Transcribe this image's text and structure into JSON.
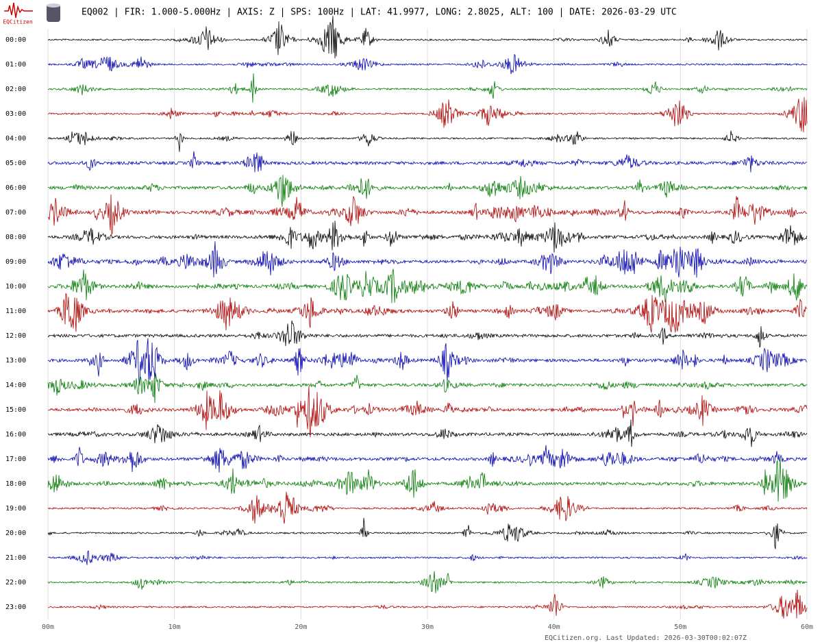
{
  "header": {
    "logo_text": "EQCitizen",
    "title": "EQ002 | FIR: 1.000-5.000Hz | AXIS: Z | SPS: 100Hz | LAT: 41.9977, LONG: 2.8025, ALT: 100 | DATE: 2026-03-29 UTC"
  },
  "chart_data": {
    "type": "helicorder",
    "rows": [
      "00:00",
      "01:00",
      "02:00",
      "03:00",
      "04:00",
      "05:00",
      "06:00",
      "07:00",
      "08:00",
      "09:00",
      "10:00",
      "11:00",
      "12:00",
      "13:00",
      "14:00",
      "15:00",
      "16:00",
      "17:00",
      "18:00",
      "19:00",
      "20:00",
      "21:00",
      "22:00",
      "23:00"
    ],
    "colors": [
      "#000000",
      "#0000b0",
      "#007a00",
      "#b00000"
    ],
    "xlim": [
      0,
      60
    ],
    "xticks": [
      {
        "value": 0,
        "label": "00m"
      },
      {
        "value": 10,
        "label": "10m"
      },
      {
        "value": 20,
        "label": "20m"
      },
      {
        "value": 30,
        "label": "30m"
      },
      {
        "value": 40,
        "label": "40m"
      },
      {
        "value": 50,
        "label": "50m"
      },
      {
        "value": 60,
        "label": "60m"
      }
    ],
    "grid": true
  },
  "footer": "EQCitizen.org. Last Updated: 2026-03-30T00:02:07Z"
}
